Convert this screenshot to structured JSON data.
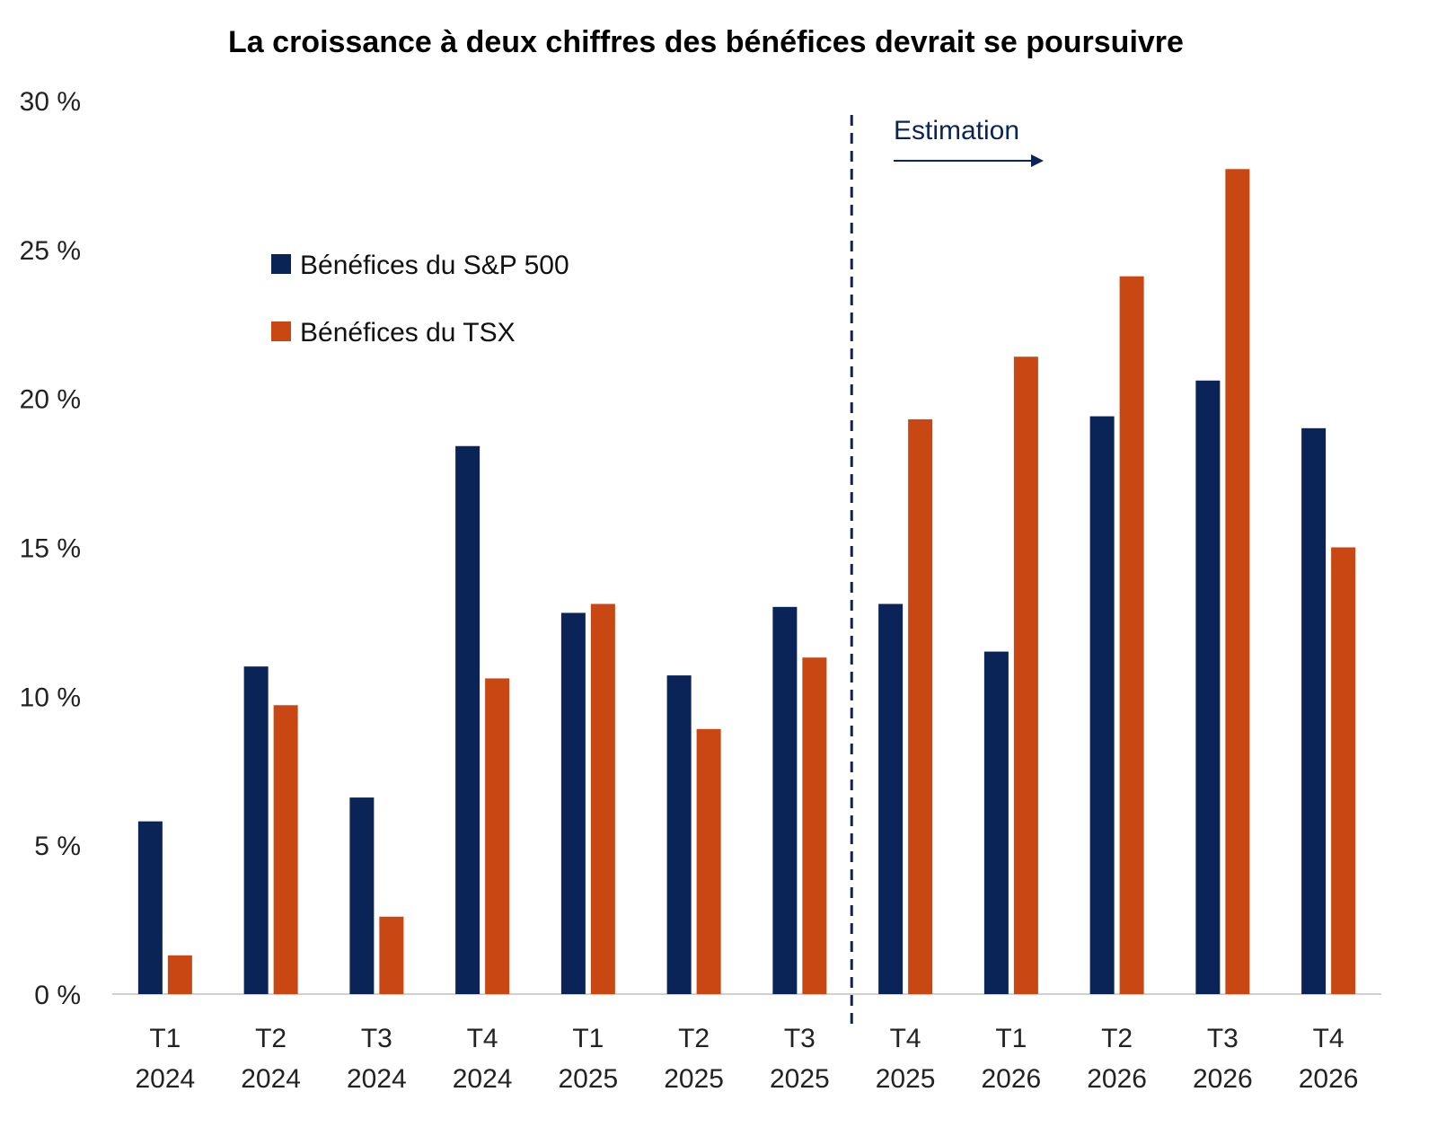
{
  "chart_data": {
    "type": "bar",
    "title": "La croissance à deux chiffres des bénéfices devrait se poursuivre",
    "xlabel": "",
    "ylabel": "",
    "ylim": [
      0,
      30
    ],
    "yticks": [
      "0 %",
      "5 %",
      "10 %",
      "15 %",
      "20 %",
      "25 %",
      "30 %"
    ],
    "grid": false,
    "legend_position": "upper-left",
    "categories": [
      [
        "T1",
        "2024"
      ],
      [
        "T2",
        "2024"
      ],
      [
        "T3",
        "2024"
      ],
      [
        "T4",
        "2024"
      ],
      [
        "T1",
        "2025"
      ],
      [
        "T2",
        "2025"
      ],
      [
        "T3",
        "2025"
      ],
      [
        "T4",
        "2025"
      ],
      [
        "T1",
        "2026"
      ],
      [
        "T2",
        "2026"
      ],
      [
        "T3",
        "2026"
      ],
      [
        "T4",
        "2026"
      ]
    ],
    "series": [
      {
        "name": "Bénéfices du S&P 500",
        "color": "#0a2458",
        "values": [
          5.8,
          11.0,
          6.6,
          18.4,
          12.8,
          10.7,
          13.0,
          13.1,
          11.5,
          19.4,
          20.6,
          19.0
        ]
      },
      {
        "name": "Bénéfices du TSX",
        "color": "#c84712",
        "values": [
          1.3,
          9.7,
          2.6,
          10.6,
          13.1,
          8.9,
          11.3,
          19.3,
          21.4,
          24.1,
          27.7,
          15.0
        ]
      }
    ],
    "annotation": {
      "label": "Estimation",
      "starts_before_category_index": 7
    }
  }
}
